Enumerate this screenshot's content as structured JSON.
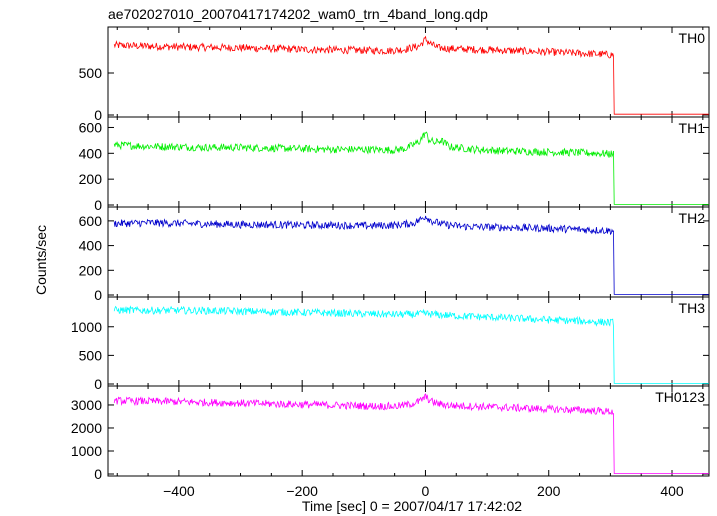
{
  "chart_data": {
    "type": "line",
    "title": "ae702027010_20070417174202_wam0_trn_4band_long.qdp",
    "xlabel": "Time [sec] 0 = 2007/04/17 17:42:02",
    "ylabel": "Counts/sec",
    "xlim": [
      -515,
      460
    ],
    "x_ticks": [
      -400,
      -200,
      0,
      200,
      400
    ],
    "grid": false,
    "panels": [
      {
        "name": "TH0",
        "color": "#ff0000",
        "ylim": [
          0,
          1000
        ],
        "y_ticks": [
          0,
          500
        ],
        "series": [
          {
            "x": [
              -505,
              -480,
              -450,
              -400,
              -350,
              -300,
              -250,
              -200,
              -150,
              -100,
              -60,
              -35,
              -10,
              0,
              10,
              20,
              40,
              80,
              120,
              160,
              200,
              250,
              280,
              305,
              306,
              310,
              350,
              400,
              460
            ],
            "y": [
              830,
              825,
              820,
              810,
              805,
              800,
              790,
              780,
              775,
              770,
              765,
              780,
              820,
              900,
              840,
              800,
              790,
              780,
              770,
              760,
              750,
              735,
              725,
              715,
              10,
              10,
              10,
              10,
              10
            ]
          }
        ]
      },
      {
        "name": "TH1",
        "color": "#00ee00",
        "ylim": [
          0,
          650
        ],
        "y_ticks": [
          0,
          200,
          400,
          600
        ],
        "series": [
          {
            "x": [
              -505,
              -480,
              -450,
              -400,
              -350,
              -300,
              -250,
              -200,
              -150,
              -100,
              -50,
              -30,
              -10,
              0,
              5,
              15,
              25,
              40,
              80,
              120,
              160,
              200,
              250,
              280,
              305,
              306,
              310,
              350,
              400,
              460
            ],
            "y": [
              465,
              460,
              455,
              450,
              445,
              445,
              440,
              435,
              430,
              430,
              425,
              440,
              490,
              560,
              510,
              480,
              500,
              450,
              430,
              420,
              415,
              410,
              405,
              400,
              395,
              5,
              5,
              5,
              5,
              5
            ]
          }
        ]
      },
      {
        "name": "TH2",
        "color": "#0000cc",
        "ylim": [
          0,
          680
        ],
        "y_ticks": [
          0,
          200,
          400,
          600
        ],
        "series": [
          {
            "x": [
              -505,
              -480,
              -450,
              -400,
              -350,
              -300,
              -250,
              -200,
              -150,
              -100,
              -50,
              -20,
              -5,
              0,
              10,
              30,
              60,
              100,
              150,
              200,
              250,
              280,
              305,
              306,
              310,
              350,
              400,
              460
            ],
            "y": [
              580,
              580,
              585,
              580,
              575,
              570,
              570,
              565,
              565,
              560,
              565,
              580,
              620,
              640,
              600,
              570,
              555,
              550,
              545,
              540,
              530,
              525,
              520,
              5,
              5,
              5,
              5,
              5
            ]
          }
        ]
      },
      {
        "name": "TH3",
        "color": "#00ffff",
        "ylim": [
          0,
          1450
        ],
        "y_ticks": [
          0,
          500,
          1000
        ],
        "series": [
          {
            "x": [
              -505,
              -480,
              -450,
              -400,
              -350,
              -300,
              -250,
              -200,
              -150,
              -100,
              -50,
              -20,
              0,
              20,
              50,
              100,
              150,
              200,
              250,
              280,
              305,
              306,
              310,
              350,
              400,
              460
            ],
            "y": [
              1290,
              1290,
              1285,
              1285,
              1280,
              1270,
              1260,
              1250,
              1240,
              1225,
              1215,
              1215,
              1230,
              1210,
              1190,
              1170,
              1145,
              1120,
              1100,
              1085,
              1070,
              10,
              10,
              10,
              10,
              10
            ]
          }
        ]
      },
      {
        "name": "TH0123",
        "color": "#ff00ff",
        "ylim": [
          0,
          3650
        ],
        "y_ticks": [
          0,
          1000,
          2000,
          3000
        ],
        "series": [
          {
            "x": [
              -505,
              -480,
              -450,
              -400,
              -350,
              -300,
              -250,
              -200,
              -150,
              -100,
              -50,
              -30,
              -10,
              0,
              10,
              20,
              40,
              80,
              120,
              160,
              200,
              250,
              280,
              305,
              306,
              310,
              350,
              400,
              460
            ],
            "y": [
              3180,
              3175,
              3160,
              3140,
              3110,
              3080,
              3050,
              3020,
              2990,
              2960,
              2940,
              3000,
              3150,
              3350,
              3150,
              3050,
              2980,
              2940,
              2900,
              2860,
              2820,
              2780,
              2740,
              2700,
              20,
              20,
              20,
              20,
              20
            ]
          }
        ]
      }
    ]
  }
}
